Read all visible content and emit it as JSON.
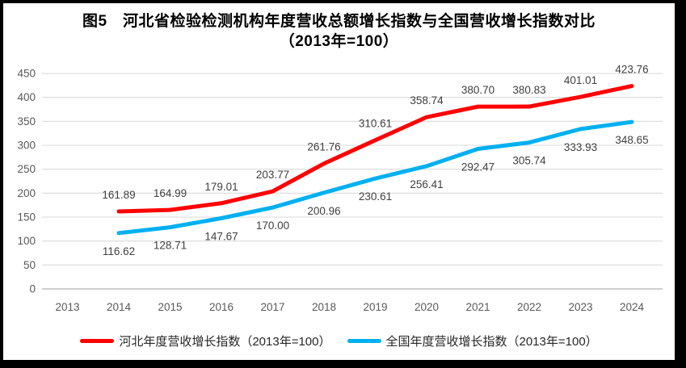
{
  "figure": {
    "title_line1": "图5　河北省检验检测机构年度营收总额增长指数与全国营收增长指数对比",
    "title_line2": "（2013年=100）"
  },
  "chart_data": {
    "type": "line",
    "title": "图5　河北省检验检测机构年度营收总额增长指数与全国营收增长指数对比（2013年=100）",
    "categories": [
      "2013",
      "2014",
      "2015",
      "2016",
      "2017",
      "2018",
      "2019",
      "2020",
      "2021",
      "2022",
      "2023",
      "2024"
    ],
    "xlabel": "",
    "ylabel": "",
    "y_axis": {
      "min": 0,
      "max": 450,
      "step": 50,
      "ticks": [
        0,
        50,
        100,
        150,
        200,
        250,
        300,
        350,
        400,
        450
      ]
    },
    "grid": true,
    "legend_position": "bottom",
    "style": {
      "grid_color": "#d9d9d9",
      "axis_line_color": "#bfbfbf",
      "tick_label_color": "#595959",
      "data_label_color": "#3f3f3f"
    },
    "series": [
      {
        "name": "河北年度营收增长指数（2013年=100）",
        "color": "#ff0000",
        "label_position": "above",
        "values": [
          null,
          161.89,
          164.99,
          179.01,
          203.77,
          261.76,
          310.61,
          358.74,
          380.7,
          380.83,
          401.01,
          423.76
        ],
        "labels": [
          "",
          "161.89",
          "164.99",
          "179.01",
          "203.77",
          "261.76",
          "310.61",
          "358.74",
          "380.70",
          "380.83",
          "401.01",
          "423.76"
        ]
      },
      {
        "name": "全国年度营收增长指数（2013年=100）",
        "color": "#00b0f0",
        "label_position": "below",
        "values": [
          null,
          116.62,
          128.71,
          147.67,
          170.0,
          200.96,
          230.61,
          256.41,
          292.47,
          305.74,
          333.93,
          348.65
        ],
        "labels": [
          "",
          "116.62",
          "128.71",
          "147.67",
          "170.00",
          "200.96",
          "230.61",
          "256.41",
          "292.47",
          "305.74",
          "333.93",
          "348.65"
        ]
      }
    ]
  }
}
